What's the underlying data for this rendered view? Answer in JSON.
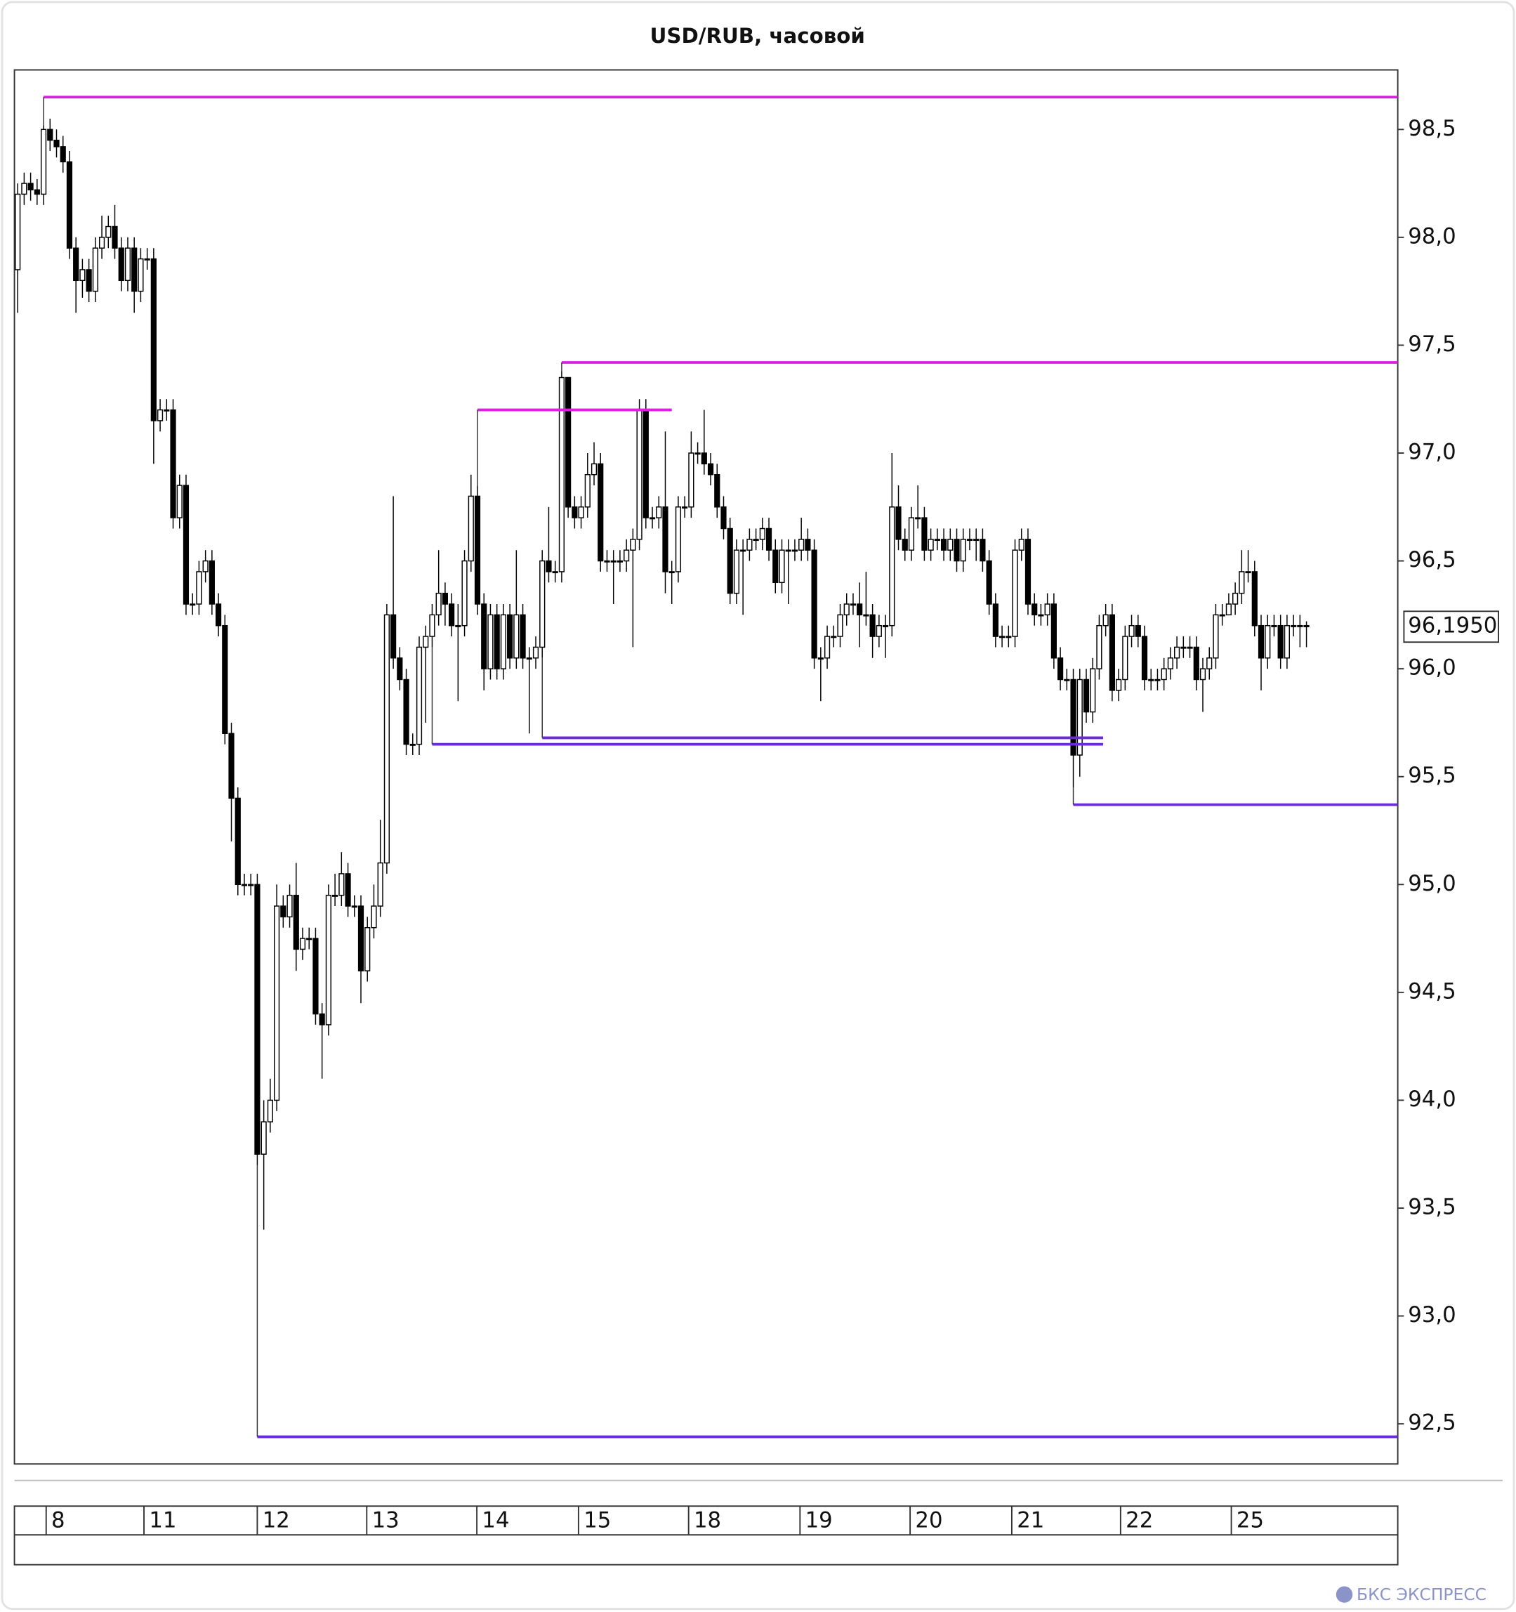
{
  "chart_data": {
    "type": "candlestick",
    "title": "USD/RUB, часовой",
    "up_color": "#ffffff",
    "down_color": "#000000",
    "x": [
      0,
      1,
      2,
      3,
      4,
      5,
      6,
      7,
      8,
      9,
      10,
      11,
      12,
      13,
      14,
      15,
      16,
      17,
      18,
      19,
      20,
      21,
      22,
      23,
      24,
      25,
      26,
      27,
      28,
      29,
      30,
      31,
      32,
      33,
      34,
      35,
      36,
      37,
      38,
      39,
      40,
      41,
      42,
      43,
      44,
      45,
      46,
      47,
      48,
      49,
      50,
      51,
      52,
      53,
      54,
      55,
      56,
      57,
      58,
      59,
      60,
      61,
      62,
      63,
      64,
      65,
      66,
      67,
      68,
      69,
      70,
      71,
      72,
      73,
      74,
      75,
      76,
      77,
      78,
      79,
      80,
      81,
      82,
      83,
      84,
      85,
      86,
      87,
      88,
      89,
      90,
      91,
      92,
      93,
      94,
      95,
      96,
      97,
      98,
      99,
      100,
      101,
      102,
      103,
      104,
      105,
      106,
      107,
      108,
      109,
      110,
      111,
      112,
      113,
      114,
      115,
      116,
      117,
      118,
      119,
      120,
      121,
      122,
      123,
      124,
      125,
      126,
      127,
      128,
      129,
      130,
      131,
      132,
      133,
      134,
      135,
      136,
      137,
      138,
      139,
      140,
      141,
      142,
      143,
      144,
      145,
      146,
      147,
      148,
      149,
      150,
      151,
      152,
      153,
      154,
      155,
      156,
      157,
      158,
      159,
      160,
      161,
      162,
      163,
      164,
      165,
      166,
      167,
      168,
      169,
      170,
      171,
      172,
      173,
      174,
      175,
      176,
      177,
      178,
      179,
      180,
      181,
      182,
      183,
      184,
      185,
      186,
      187,
      188,
      189,
      190,
      191,
      192,
      193,
      194,
      195,
      196,
      197,
      198,
      199
    ],
    "open": [
      97.85,
      98.2,
      98.25,
      98.22,
      98.2,
      98.5,
      98.45,
      98.42,
      98.35,
      97.95,
      97.8,
      97.85,
      97.75,
      97.95,
      98.0,
      98.05,
      97.95,
      97.8,
      97.95,
      97.75,
      97.9,
      97.9,
      97.15,
      97.2,
      97.2,
      96.7,
      96.85,
      96.3,
      96.3,
      96.45,
      96.5,
      96.3,
      96.2,
      95.7,
      95.4,
      95.0,
      95.0,
      95.0,
      93.75,
      93.9,
      94.0,
      94.9,
      94.85,
      94.95,
      94.7,
      94.75,
      94.75,
      94.4,
      94.35,
      94.95,
      94.95,
      95.05,
      94.9,
      94.9,
      94.6,
      94.8,
      94.9,
      95.1,
      96.25,
      96.05,
      95.95,
      95.65,
      95.65,
      96.1,
      96.15,
      96.25,
      96.35,
      96.3,
      96.2,
      96.2,
      96.5,
      96.8,
      96.3,
      96.0,
      96.25,
      96.0,
      96.25,
      96.05,
      96.25,
      96.05,
      96.05,
      96.1,
      96.5,
      96.45,
      96.45,
      97.35,
      96.75,
      96.7,
      96.75,
      96.9,
      96.95,
      96.5,
      96.5,
      96.5,
      96.5,
      96.55,
      96.6,
      97.2,
      96.7,
      96.7,
      96.75,
      96.45,
      96.45,
      96.75,
      96.75,
      97.0,
      97.0,
      96.95,
      96.9,
      96.75,
      96.65,
      96.35,
      96.55,
      96.55,
      96.6,
      96.6,
      96.65,
      96.55,
      96.4,
      96.55,
      96.55,
      96.55,
      96.6,
      96.55,
      96.05,
      96.05,
      96.15,
      96.15,
      96.25,
      96.3,
      96.3,
      96.25,
      96.25,
      96.15,
      96.2,
      96.2,
      96.75,
      96.6,
      96.55,
      96.7,
      96.7,
      96.55,
      96.6,
      96.6,
      96.55,
      96.6,
      96.5,
      96.6,
      96.6,
      96.6,
      96.5,
      96.3,
      96.15,
      96.15,
      96.15,
      96.55,
      96.6,
      96.3,
      96.25,
      96.25,
      96.3,
      96.05,
      95.95,
      95.95,
      95.6,
      95.95,
      95.8,
      96.0,
      96.2,
      96.25,
      95.9,
      95.95,
      96.15,
      96.2,
      96.15,
      95.95,
      95.95,
      95.95,
      96.0,
      96.05,
      96.1,
      96.1,
      96.1,
      95.95,
      96.0,
      96.05,
      96.25,
      96.25,
      96.3,
      96.35,
      96.45,
      96.45,
      96.2,
      96.05,
      96.2,
      96.2,
      96.05,
      96.2,
      96.2,
      96.2
    ],
    "high": [
      98.25,
      98.3,
      98.3,
      98.27,
      98.52,
      98.55,
      98.5,
      98.47,
      98.4,
      98.0,
      97.9,
      97.9,
      98.0,
      98.1,
      98.1,
      98.15,
      98.0,
      98.0,
      98.0,
      97.95,
      97.95,
      97.95,
      97.25,
      97.25,
      97.25,
      96.9,
      96.9,
      96.35,
      96.5,
      96.55,
      96.55,
      96.35,
      96.25,
      95.75,
      95.45,
      95.05,
      95.05,
      95.05,
      94.0,
      94.1,
      95.0,
      94.95,
      95.0,
      95.1,
      94.8,
      94.8,
      94.8,
      94.45,
      95.0,
      95.05,
      95.15,
      95.1,
      94.95,
      94.95,
      94.85,
      95.0,
      95.3,
      96.3,
      96.8,
      96.1,
      96.0,
      95.7,
      96.15,
      96.2,
      96.3,
      96.55,
      96.4,
      96.35,
      96.3,
      96.55,
      96.9,
      96.85,
      96.35,
      96.3,
      96.3,
      96.3,
      96.3,
      96.55,
      96.3,
      96.1,
      96.15,
      96.55,
      96.75,
      96.5,
      97.38,
      97.35,
      96.8,
      96.8,
      97.0,
      97.05,
      97.0,
      96.55,
      96.55,
      96.55,
      96.6,
      96.65,
      97.25,
      97.25,
      96.75,
      96.8,
      97.1,
      96.5,
      96.8,
      96.8,
      97.1,
      97.05,
      97.2,
      97.0,
      96.95,
      96.8,
      96.7,
      96.6,
      96.6,
      96.65,
      96.65,
      96.7,
      96.7,
      96.6,
      96.6,
      96.6,
      96.6,
      96.7,
      96.65,
      96.6,
      96.1,
      96.2,
      96.2,
      96.3,
      96.35,
      96.35,
      96.4,
      96.45,
      96.3,
      96.25,
      96.25,
      97.0,
      96.85,
      96.65,
      96.75,
      96.85,
      96.75,
      96.65,
      96.65,
      96.65,
      96.65,
      96.65,
      96.65,
      96.65,
      96.65,
      96.65,
      96.55,
      96.35,
      96.2,
      96.2,
      96.6,
      96.65,
      96.65,
      96.35,
      96.3,
      96.35,
      96.35,
      96.1,
      96.0,
      96.0,
      96.0,
      96.0,
      96.05,
      96.25,
      96.3,
      96.3,
      96.0,
      96.2,
      96.25,
      96.25,
      96.2,
      96.0,
      96.0,
      96.05,
      96.1,
      96.15,
      96.15,
      96.15,
      96.15,
      96.05,
      96.1,
      96.3,
      96.3,
      96.35,
      96.4,
      96.55,
      96.55,
      96.5,
      96.25,
      96.25,
      96.25,
      96.25,
      96.25,
      96.25,
      96.25,
      96.22
    ],
    "low": [
      97.65,
      98.15,
      98.17,
      98.15,
      98.15,
      98.4,
      98.37,
      98.3,
      97.9,
      97.65,
      97.72,
      97.7,
      97.7,
      97.9,
      97.95,
      97.9,
      97.75,
      97.75,
      97.65,
      97.7,
      97.85,
      96.95,
      97.1,
      97.15,
      96.65,
      96.65,
      96.25,
      96.25,
      96.25,
      96.4,
      96.25,
      96.15,
      95.65,
      95.2,
      94.95,
      94.95,
      94.95,
      93.7,
      93.4,
      93.85,
      93.95,
      94.8,
      94.8,
      94.6,
      94.65,
      94.7,
      94.35,
      94.1,
      94.3,
      94.9,
      94.9,
      94.85,
      94.85,
      94.45,
      94.55,
      94.75,
      94.85,
      95.05,
      96.0,
      95.9,
      95.6,
      95.6,
      95.6,
      95.75,
      96.1,
      96.2,
      96.2,
      96.15,
      95.85,
      96.15,
      96.45,
      96.25,
      95.9,
      95.95,
      95.95,
      95.95,
      96.0,
      96.0,
      96.0,
      95.7,
      96.0,
      96.05,
      96.4,
      96.4,
      96.4,
      96.7,
      96.65,
      96.65,
      96.7,
      96.85,
      96.45,
      96.45,
      96.3,
      96.45,
      96.45,
      96.1,
      96.55,
      96.65,
      96.65,
      96.65,
      96.35,
      96.3,
      96.4,
      96.7,
      96.7,
      96.95,
      96.9,
      96.85,
      96.7,
      96.6,
      96.3,
      96.3,
      96.25,
      96.5,
      96.55,
      96.55,
      96.5,
      96.35,
      96.35,
      96.3,
      96.5,
      96.5,
      96.5,
      96.0,
      95.85,
      96.0,
      96.1,
      96.1,
      96.2,
      96.25,
      96.1,
      96.2,
      96.05,
      96.1,
      96.05,
      96.15,
      96.55,
      96.5,
      96.5,
      96.65,
      96.5,
      96.5,
      96.55,
      96.5,
      96.5,
      96.45,
      96.45,
      96.55,
      96.5,
      96.45,
      96.25,
      96.1,
      96.1,
      96.1,
      96.1,
      96.5,
      96.25,
      96.2,
      96.2,
      96.2,
      96.0,
      95.9,
      95.9,
      95.45,
      95.5,
      95.75,
      95.75,
      95.95,
      96.15,
      95.85,
      95.85,
      95.9,
      96.1,
      96.1,
      95.9,
      95.9,
      95.9,
      95.9,
      95.95,
      96.0,
      96.05,
      96.05,
      95.9,
      95.8,
      95.95,
      96.0,
      96.2,
      96.25,
      96.25,
      96.3,
      96.4,
      96.15,
      95.9,
      96.0,
      96.15,
      96.0,
      96.0,
      96.15,
      96.1,
      96.1
    ],
    "close": [
      98.2,
      98.25,
      98.22,
      98.2,
      98.5,
      98.45,
      98.42,
      98.35,
      97.95,
      97.8,
      97.85,
      97.75,
      97.95,
      98.0,
      98.05,
      97.95,
      97.8,
      97.95,
      97.75,
      97.9,
      97.9,
      97.15,
      97.2,
      97.2,
      96.7,
      96.85,
      96.3,
      96.3,
      96.45,
      96.5,
      96.3,
      96.2,
      95.7,
      95.4,
      95.0,
      95.0,
      95.0,
      93.75,
      93.9,
      94.0,
      94.9,
      94.85,
      94.95,
      94.7,
      94.75,
      94.75,
      94.4,
      94.35,
      94.95,
      94.95,
      95.05,
      94.9,
      94.9,
      94.6,
      94.8,
      94.9,
      95.1,
      96.25,
      96.05,
      95.95,
      95.65,
      95.65,
      96.1,
      96.15,
      96.25,
      96.35,
      96.3,
      96.2,
      96.2,
      96.5,
      96.8,
      96.3,
      96.0,
      96.25,
      96.0,
      96.25,
      96.05,
      96.25,
      96.05,
      96.05,
      96.1,
      96.5,
      96.45,
      96.45,
      97.35,
      96.75,
      96.7,
      96.75,
      96.9,
      96.95,
      96.5,
      96.5,
      96.5,
      96.5,
      96.55,
      96.6,
      97.2,
      96.7,
      96.7,
      96.75,
      96.45,
      96.45,
      96.75,
      96.75,
      97.0,
      97.0,
      96.95,
      96.9,
      96.75,
      96.65,
      96.35,
      96.55,
      96.55,
      96.6,
      96.6,
      96.65,
      96.55,
      96.4,
      96.55,
      96.55,
      96.55,
      96.6,
      96.55,
      96.05,
      96.05,
      96.15,
      96.15,
      96.25,
      96.3,
      96.3,
      96.25,
      96.25,
      96.15,
      96.2,
      96.2,
      96.75,
      96.6,
      96.55,
      96.7,
      96.7,
      96.55,
      96.6,
      96.6,
      96.55,
      96.6,
      96.5,
      96.6,
      96.6,
      96.6,
      96.5,
      96.3,
      96.15,
      96.15,
      96.15,
      96.55,
      96.6,
      96.3,
      96.25,
      96.25,
      96.3,
      96.05,
      95.95,
      95.95,
      95.6,
      95.95,
      95.8,
      96.0,
      96.2,
      96.25,
      95.9,
      95.95,
      96.15,
      96.2,
      96.15,
      95.95,
      95.95,
      95.95,
      96.0,
      96.05,
      96.1,
      96.1,
      96.1,
      95.95,
      96.0,
      96.05,
      96.25,
      96.25,
      96.3,
      96.35,
      96.45,
      96.45,
      96.2,
      96.05,
      96.2,
      96.2,
      96.05,
      96.2,
      96.2,
      96.2,
      96.195
    ],
    "xlim": [
      -0.5,
      213.1
    ],
    "ylim": [
      92.314,
      98.776
    ],
    "xticks": [
      {
        "value": 4.4,
        "label": "8"
      },
      {
        "value": 19.5,
        "label": "11"
      },
      {
        "value": 37,
        "label": "12"
      },
      {
        "value": 53.9,
        "label": "13"
      },
      {
        "value": 70.9,
        "label": "14"
      },
      {
        "value": 86.6,
        "label": "15"
      },
      {
        "value": 103.6,
        "label": "18"
      },
      {
        "value": 120.8,
        "label": "19"
      },
      {
        "value": 137.8,
        "label": "20"
      },
      {
        "value": 153.5,
        "label": "21"
      },
      {
        "value": 170.3,
        "label": "22"
      },
      {
        "value": 187.4,
        "label": "25"
      }
    ],
    "yticks": [
      {
        "value": 92.5,
        "label": "92,5"
      },
      {
        "value": 93,
        "label": "93,0"
      },
      {
        "value": 93.5,
        "label": "93,5"
      },
      {
        "value": 94,
        "label": "94,0"
      },
      {
        "value": 94.5,
        "label": "94,5"
      },
      {
        "value": 95,
        "label": "95,0"
      },
      {
        "value": 95.5,
        "label": "95,5"
      },
      {
        "value": 96,
        "label": "96,0"
      },
      {
        "value": 96.5,
        "label": "96,5"
      },
      {
        "value": 97,
        "label": "97,0"
      },
      {
        "value": 97.5,
        "label": "97,5"
      },
      {
        "value": 98,
        "label": "98,0"
      },
      {
        "value": 98.5,
        "label": "98,5"
      }
    ],
    "levels": [
      {
        "price": 98.65,
        "from": 4,
        "color": "#d91fe0"
      },
      {
        "price": 97.42,
        "from": 84,
        "color": "#d91fe0"
      },
      {
        "price": 97.2,
        "from": 71,
        "to": 101,
        "color": "#d91fe0"
      },
      {
        "price": 95.65,
        "from": 64,
        "to": 167.6,
        "color": "#6a2bd8"
      },
      {
        "price": 95.68,
        "from": 81,
        "to": 167.6,
        "color": "#6a2bd8"
      },
      {
        "price": 95.37,
        "from": 163,
        "color": "#6a2bd8"
      },
      {
        "price": 92.44,
        "from": 37,
        "color": "#6a2bd8"
      }
    ],
    "last_price": {
      "value": 96.195,
      "label": "96,1950"
    }
  },
  "footer": {
    "brand": "БКС ЭКСПРЕСС"
  }
}
